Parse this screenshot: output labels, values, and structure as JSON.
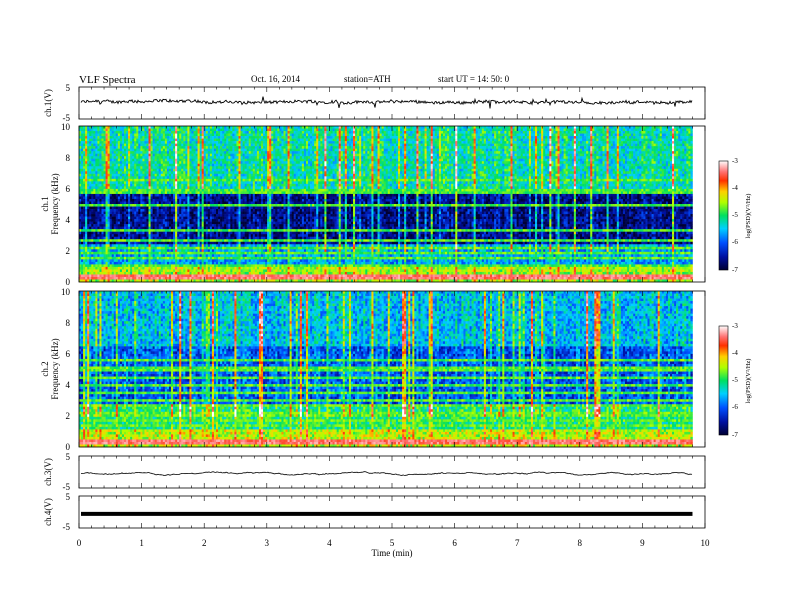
{
  "header": {
    "title": "VLF  Spectra",
    "date": "Oct. 16, 2014",
    "station": "station=ATH",
    "start": "start  UT  =    14: 50: 0"
  },
  "chart_data": [
    {
      "type": "line",
      "name": "ch1-waveform",
      "ylabel": "ch.1(V)",
      "ylim": [
        -5,
        5
      ],
      "yticks": [
        "5",
        "-5"
      ],
      "xlim": [
        0,
        10
      ],
      "trace_level": 0.3,
      "color": "#000000"
    },
    {
      "type": "heatmap",
      "name": "ch1-spectrogram",
      "ylabel_top": "ch.1",
      "ylabel": "Frequency  (kHz)",
      "ylim": [
        0,
        10
      ],
      "yticks": [
        "0",
        "2",
        "4",
        "6",
        "8",
        "10"
      ],
      "xlim": [
        0,
        9.8
      ],
      "colorbar": {
        "label": "log(PSD)(V²/Hz)",
        "range": [
          -7,
          -3
        ],
        "ticks": [
          "-7",
          "-6",
          "-5",
          "-4",
          "-3"
        ]
      }
    },
    {
      "type": "heatmap",
      "name": "ch2-spectrogram",
      "ylabel_top": "ch.2",
      "ylabel": "Frequency  (kHz)",
      "ylim": [
        0,
        10
      ],
      "yticks": [
        "0",
        "2",
        "4",
        "6",
        "8",
        "10"
      ],
      "xlim": [
        0,
        9.8
      ],
      "colorbar": {
        "label": "log(PSD)(V²/Hz)",
        "range": [
          -7,
          -3
        ],
        "ticks": [
          "-7",
          "-6",
          "-5",
          "-4",
          "-3"
        ]
      }
    },
    {
      "type": "line",
      "name": "ch3-waveform",
      "ylabel": "ch.3(V)",
      "ylim": [
        -5,
        5
      ],
      "yticks": [
        "5",
        "-5"
      ],
      "trace_level": -0.6,
      "color": "#000000"
    },
    {
      "type": "line",
      "name": "ch4-waveform",
      "ylabel": "ch.4(V)",
      "ylim": [
        -5,
        5
      ],
      "yticks": [
        "5",
        "-5"
      ],
      "trace_level": -0.6,
      "color": "#000000"
    }
  ],
  "xaxis": {
    "label": "Time  (min)",
    "range": [
      0,
      10
    ],
    "ticks": [
      "0",
      "1",
      "2",
      "3",
      "4",
      "5",
      "6",
      "7",
      "8",
      "9",
      "10"
    ]
  }
}
